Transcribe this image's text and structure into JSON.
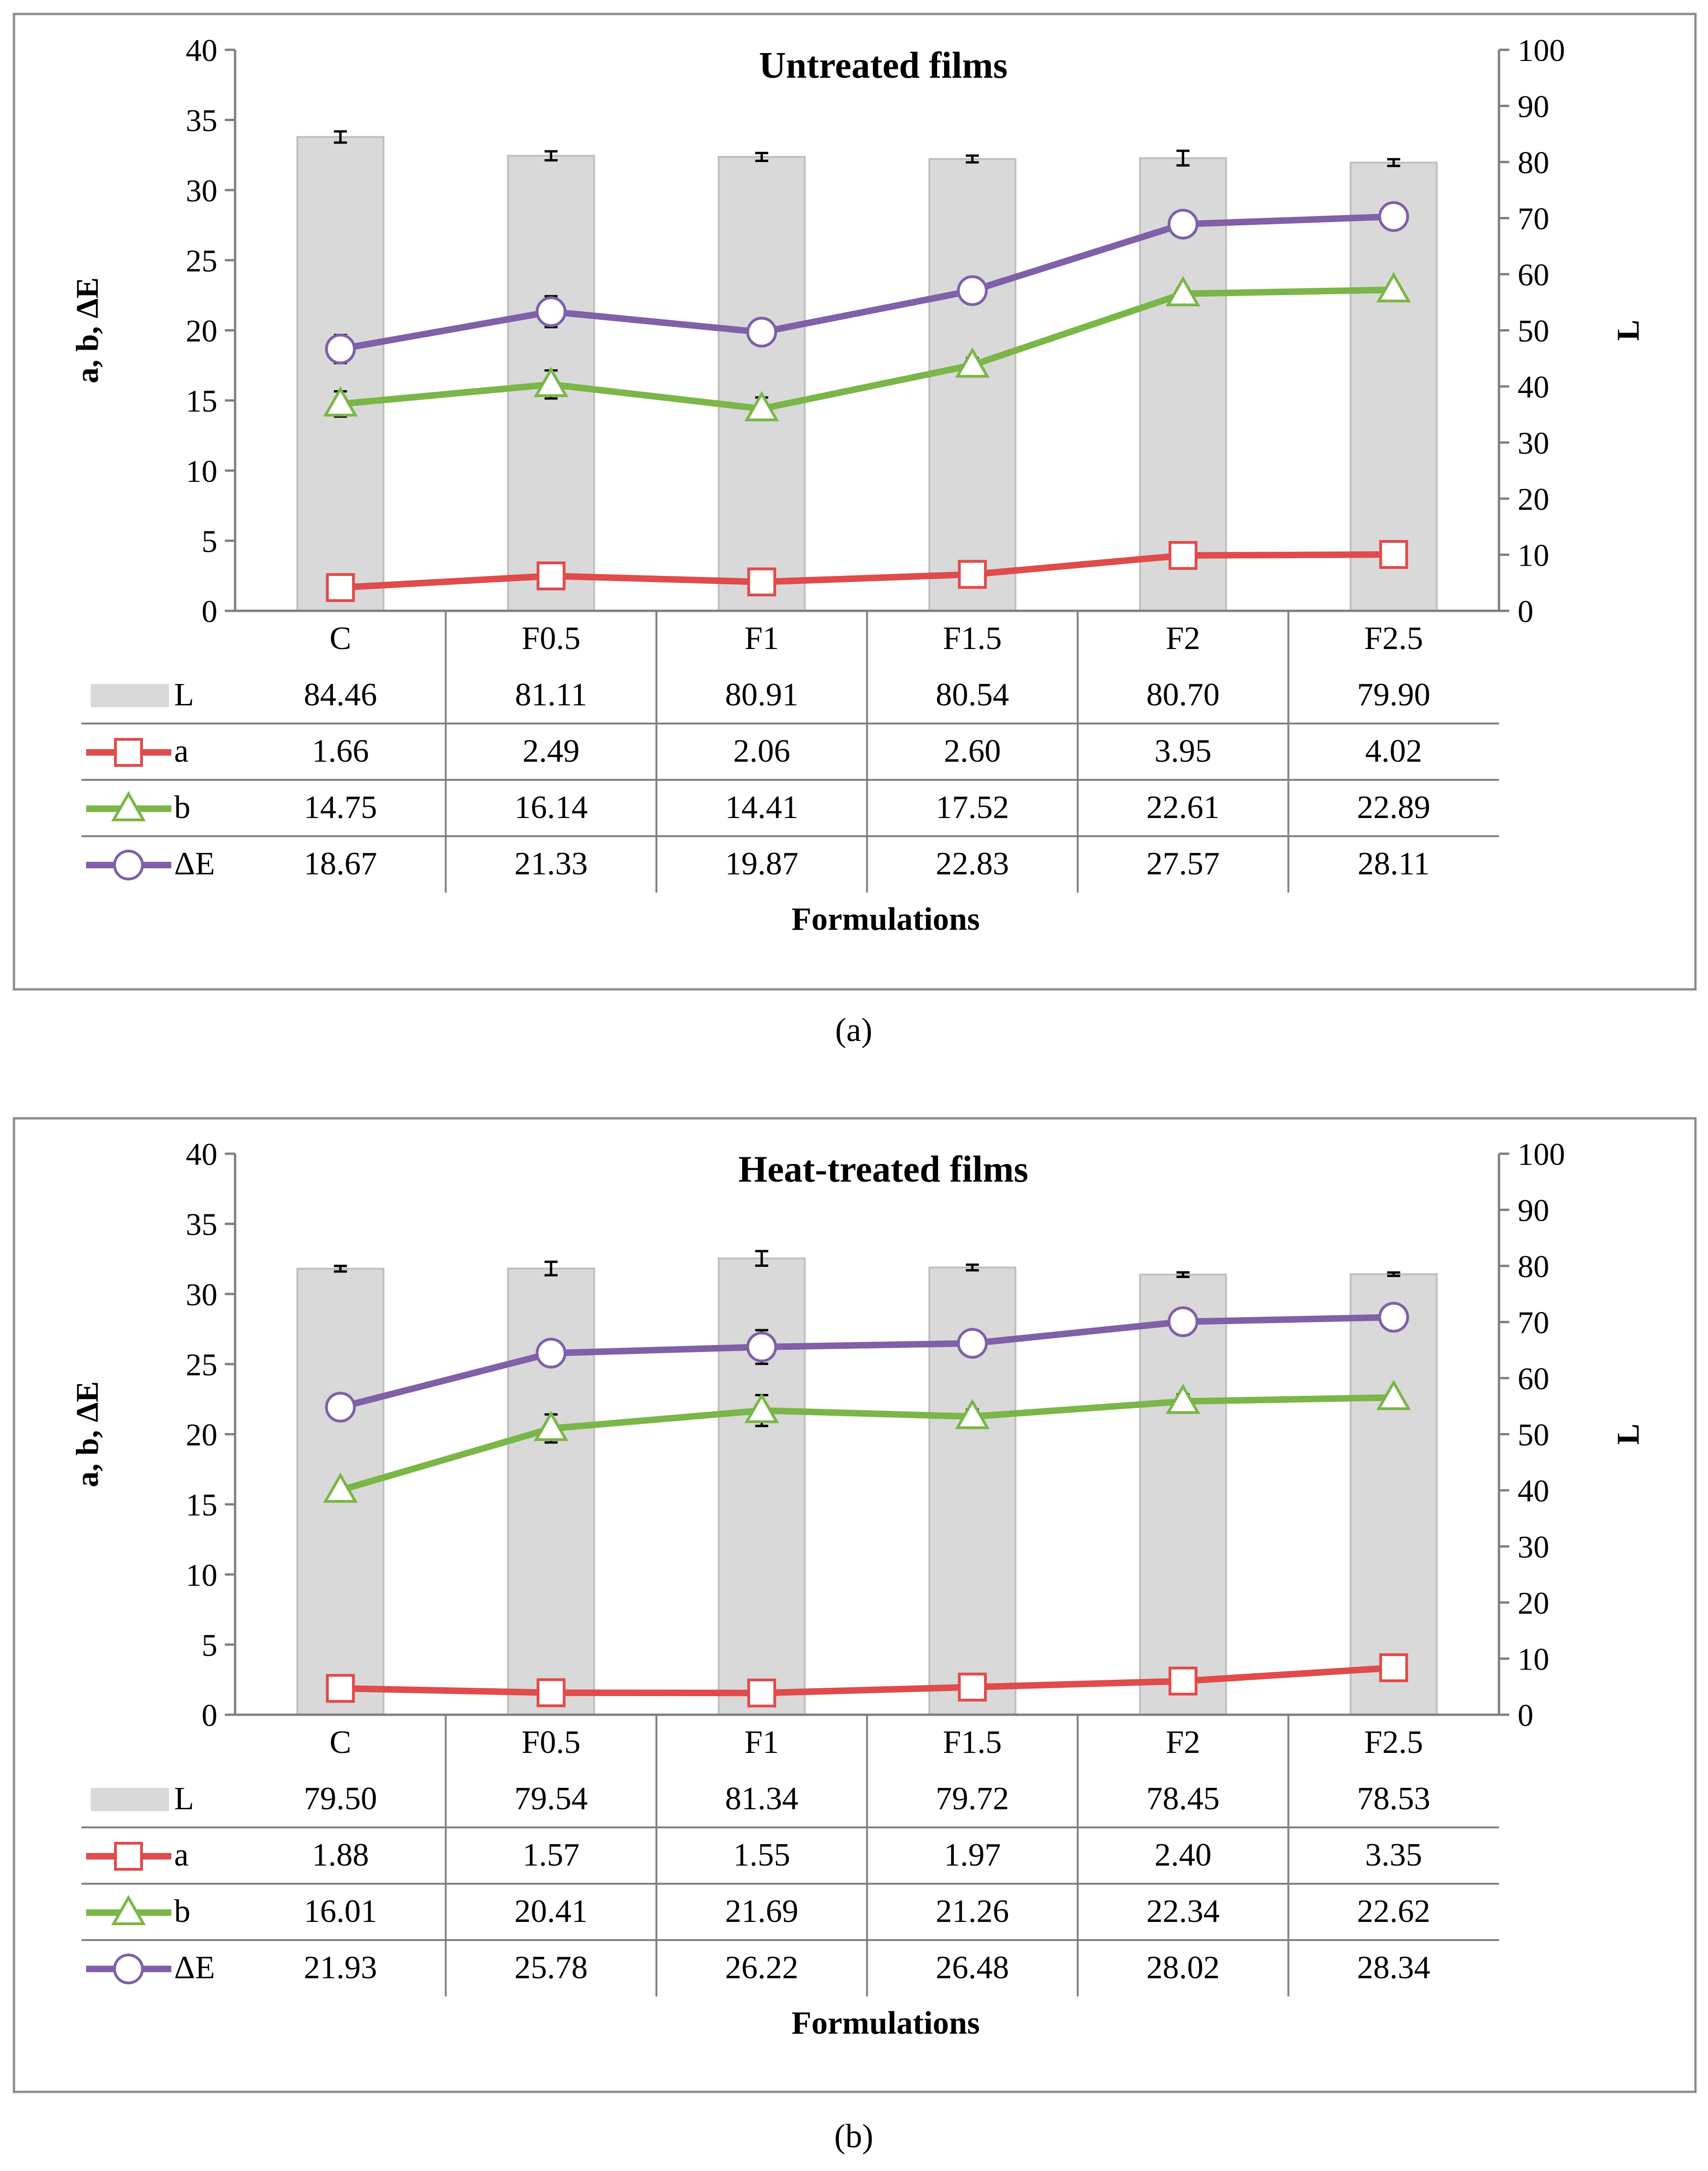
{
  "chart_data": [
    {
      "panel_label": "(a)",
      "panel_letter": "a",
      "type": "bar+line",
      "title": "Untreated films",
      "xlabel": "Formulations",
      "ylabel_left": "a, b, ΔE",
      "ylabel_right": "L",
      "ylim_left": [
        0,
        40
      ],
      "ylim_right": [
        0,
        100
      ],
      "yticks_left": [
        "0",
        "5",
        "10",
        "15",
        "20",
        "25",
        "30",
        "35",
        "40"
      ],
      "yticks_right": [
        "0",
        "10",
        "20",
        "30",
        "40",
        "50",
        "60",
        "70",
        "80",
        "90",
        "100"
      ],
      "categories": [
        "C",
        "F0.5",
        "F1",
        "F1.5",
        "F2",
        "F2.5"
      ],
      "series": [
        {
          "name": "L",
          "kind": "bar",
          "axis": "right",
          "color": "#d9d9d9",
          "values": [
            84.46,
            81.11,
            80.91,
            80.54,
            80.7,
            79.9
          ],
          "labels": [
            "84.46",
            "81.11",
            "80.91",
            "80.54",
            "80.70",
            "79.90"
          ],
          "errors": [
            1.0,
            0.8,
            0.7,
            0.6,
            1.3,
            0.6
          ]
        },
        {
          "name": "a",
          "kind": "line",
          "marker": "square",
          "axis": "left",
          "color": "#e04b4b",
          "values": [
            1.66,
            2.49,
            2.06,
            2.6,
            3.95,
            4.02
          ],
          "labels": [
            "1.66",
            "2.49",
            "2.06",
            "2.60",
            "3.95",
            "4.02"
          ],
          "errors": [
            0.8,
            0.5,
            0.4,
            0.4,
            0.7,
            0.6
          ]
        },
        {
          "name": "b",
          "kind": "line",
          "marker": "triangle",
          "axis": "left",
          "color": "#7ab648",
          "values": [
            14.75,
            16.14,
            14.41,
            17.52,
            22.61,
            22.89
          ],
          "labels": [
            "14.75",
            "16.14",
            "14.41",
            "17.52",
            "22.61",
            "22.89"
          ],
          "errors": [
            0.9,
            1.0,
            0.8,
            0.5,
            0.4,
            0.4
          ]
        },
        {
          "name": "ΔE",
          "kind": "line",
          "marker": "circle",
          "axis": "left",
          "color": "#8060a8",
          "values": [
            18.67,
            21.33,
            19.87,
            22.83,
            27.57,
            28.11
          ],
          "labels": [
            "18.67",
            "21.33",
            "19.87",
            "22.83",
            "27.57",
            "28.11"
          ],
          "errors": [
            1.0,
            1.1,
            0.9,
            0.7,
            0.6,
            0.5
          ]
        }
      ]
    },
    {
      "panel_label": "(b)",
      "panel_letter": "b",
      "type": "bar+line",
      "title": "Heat-treated films",
      "xlabel": "Formulations",
      "ylabel_left": "a, b, ΔE",
      "ylabel_right": "L",
      "ylim_left": [
        0,
        40
      ],
      "ylim_right": [
        0,
        100
      ],
      "yticks_left": [
        "0",
        "5",
        "10",
        "15",
        "20",
        "25",
        "30",
        "35",
        "40"
      ],
      "yticks_right": [
        "0",
        "10",
        "20",
        "30",
        "40",
        "50",
        "60",
        "70",
        "80",
        "90",
        "100"
      ],
      "categories": [
        "C",
        "F0.5",
        "F1",
        "F1.5",
        "F2",
        "F2.5"
      ],
      "series": [
        {
          "name": "L",
          "kind": "bar",
          "axis": "right",
          "color": "#d9d9d9",
          "values": [
            79.5,
            79.54,
            81.34,
            79.72,
            78.45,
            78.53
          ],
          "labels": [
            "79.50",
            "79.54",
            "81.34",
            "79.72",
            "78.45",
            "78.53"
          ],
          "errors": [
            0.5,
            1.2,
            1.3,
            0.5,
            0.4,
            0.3
          ]
        },
        {
          "name": "a",
          "kind": "line",
          "marker": "square",
          "axis": "left",
          "color": "#e04b4b",
          "values": [
            1.88,
            1.57,
            1.55,
            1.97,
            2.4,
            3.35
          ],
          "labels": [
            "1.88",
            "1.57",
            "1.55",
            "1.97",
            "2.40",
            "3.35"
          ],
          "errors": [
            0.3,
            0.2,
            0.3,
            0.3,
            0.4,
            0.5
          ]
        },
        {
          "name": "b",
          "kind": "line",
          "marker": "triangle",
          "axis": "left",
          "color": "#7ab648",
          "values": [
            16.01,
            20.41,
            21.69,
            21.26,
            22.34,
            22.62
          ],
          "labels": [
            "16.01",
            "20.41",
            "21.69",
            "21.26",
            "22.34",
            "22.62"
          ],
          "errors": [
            0.3,
            1.0,
            1.1,
            0.5,
            0.5,
            0.4
          ]
        },
        {
          "name": "ΔE",
          "kind": "line",
          "marker": "circle",
          "axis": "left",
          "color": "#8060a8",
          "values": [
            21.93,
            25.78,
            26.22,
            26.48,
            28.02,
            28.34
          ],
          "labels": [
            "21.93",
            "25.78",
            "26.22",
            "26.48",
            "28.02",
            "28.34"
          ],
          "errors": [
            0.4,
            0.9,
            1.2,
            0.4,
            0.4,
            0.4
          ]
        }
      ]
    }
  ]
}
